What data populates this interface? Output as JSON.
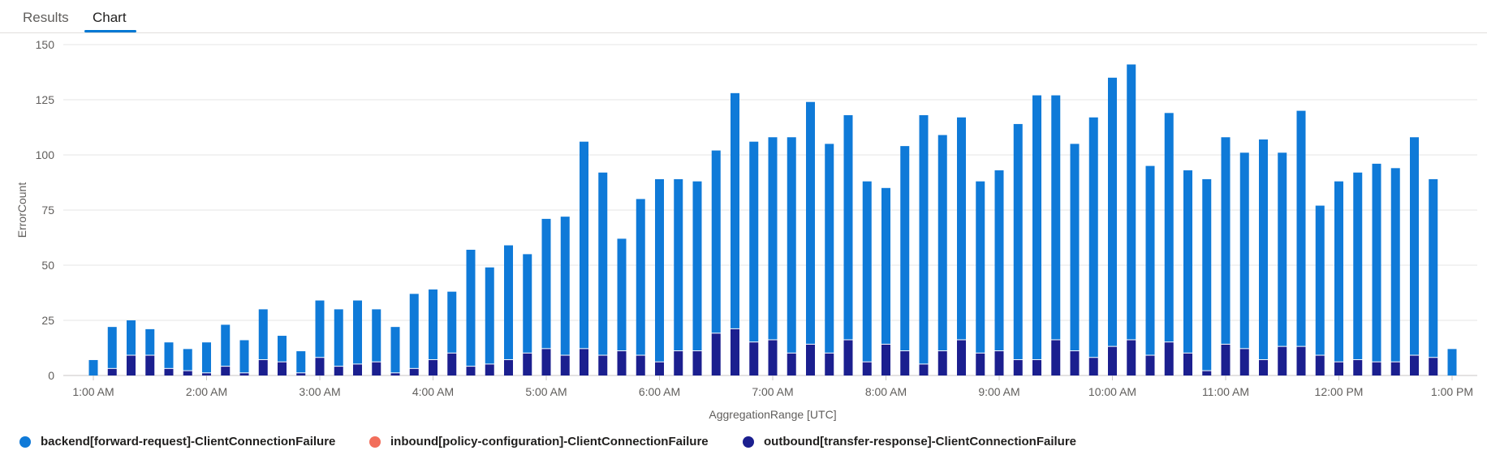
{
  "tabs": [
    {
      "label": "Results"
    },
    {
      "label": "Chart"
    }
  ],
  "colors": {
    "backend": "#0f7ad8",
    "inbound": "#f26e5b",
    "outbound": "#1b1f8f",
    "accent": "#0078d4"
  },
  "legend": [
    {
      "label": "backend[forward-request]-ClientConnectionFailure",
      "color": "#0f7ad8"
    },
    {
      "label": "inbound[policy-configuration]-ClientConnectionFailure",
      "color": "#f26e5b"
    },
    {
      "label": "outbound[transfer-response]-ClientConnectionFailure",
      "color": "#1b1f8f"
    }
  ],
  "chart_data": {
    "type": "bar",
    "stacked": true,
    "ylabel": "ErrorCount",
    "xlabel": "AggregationRange [UTC]",
    "ylim": [
      0,
      150
    ],
    "yticks": [
      0,
      25,
      50,
      75,
      100,
      125,
      150
    ],
    "xticks": [
      "1:00 AM",
      "2:00 AM",
      "3:00 AM",
      "4:00 AM",
      "5:00 AM",
      "6:00 AM",
      "7:00 AM",
      "8:00 AM",
      "9:00 AM",
      "10:00 AM",
      "11:00 AM",
      "12:00 PM",
      "1:00 PM"
    ],
    "interval_minutes": 10,
    "grid": true,
    "legend_position": "bottom-left",
    "series": [
      {
        "name": "outbound[transfer-response]-ClientConnectionFailure",
        "values": [
          0,
          3,
          9,
          9,
          3,
          2,
          1,
          4,
          1,
          7,
          6,
          1,
          8,
          4,
          5,
          6,
          1,
          3,
          7,
          10,
          4,
          5,
          7,
          10,
          12,
          9,
          12,
          9,
          11,
          9,
          6,
          11,
          11,
          19,
          21,
          15,
          16,
          10,
          14,
          10,
          16,
          6,
          14,
          11,
          5,
          11,
          16,
          10,
          11,
          7,
          7,
          16,
          11,
          8,
          13,
          16,
          9,
          15,
          10,
          2,
          14,
          12,
          7,
          13,
          13,
          9,
          6,
          7,
          6,
          6,
          9,
          8,
          0
        ]
      },
      {
        "name": "backend[forward-request]-ClientConnectionFailure",
        "values": [
          7,
          19,
          16,
          12,
          12,
          10,
          14,
          19,
          15,
          23,
          12,
          10,
          26,
          26,
          29,
          24,
          21,
          34,
          32,
          28,
          53,
          44,
          52,
          45,
          59,
          63,
          94,
          83,
          51,
          71,
          83,
          78,
          77,
          83,
          107,
          91,
          92,
          98,
          110,
          95,
          102,
          82,
          71,
          93,
          113,
          98,
          101,
          78,
          82,
          107,
          120,
          111,
          94,
          109,
          122,
          125,
          86,
          104,
          83,
          87,
          94,
          89,
          100,
          88,
          107,
          68,
          82,
          85,
          90,
          88,
          99,
          81,
          12
        ]
      },
      {
        "name": "inbound[policy-configuration]-ClientConnectionFailure",
        "values": [
          0,
          0,
          0,
          0,
          0,
          0,
          0,
          0,
          0,
          0,
          0,
          0,
          0,
          0,
          0,
          0,
          0,
          0,
          0,
          0,
          0,
          0,
          0,
          0,
          0,
          0,
          0,
          0,
          0,
          0,
          0,
          0,
          0,
          0,
          0,
          0,
          0,
          0,
          0,
          0,
          0,
          0,
          0,
          0,
          0,
          0,
          0,
          0,
          0,
          0,
          0,
          0,
          0,
          0,
          0,
          0,
          0,
          0,
          0,
          0,
          0,
          0,
          0,
          0,
          0,
          0,
          0,
          0,
          0,
          0,
          0,
          0,
          0
        ]
      }
    ]
  }
}
